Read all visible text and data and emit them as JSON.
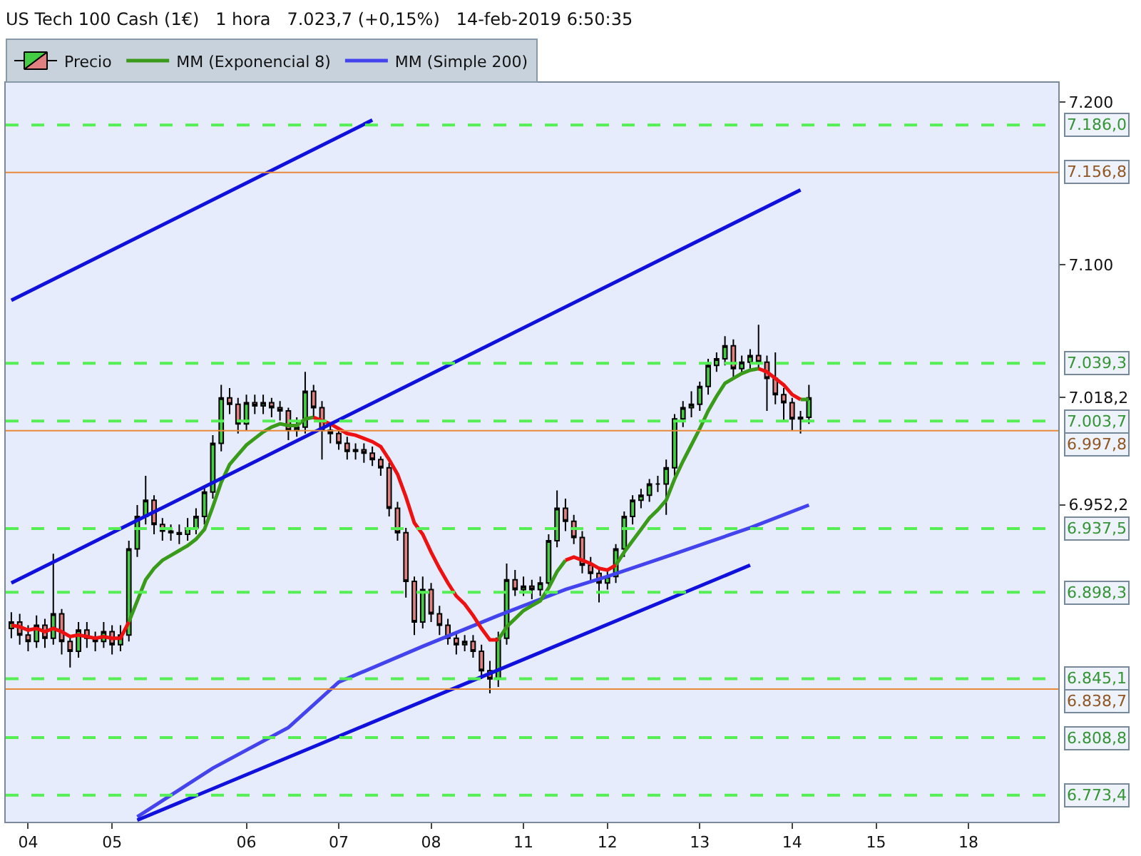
{
  "chart_data": {
    "type": "candlestick",
    "title": "US Tech 100 Cash (1€)   1 hora   7.023,7 (+0,15%)   14-feb-2019 6:50:35",
    "legend": "top left",
    "categories": [
      null,
      null,
      "04",
      null,
      null,
      null,
      null,
      null,
      null,
      null,
      null,
      null,
      "05",
      null,
      null,
      null,
      null,
      null,
      null,
      null,
      null,
      null,
      null,
      null,
      null,
      null,
      null,
      null,
      "06",
      null,
      null,
      null,
      null,
      null,
      null,
      null,
      null,
      null,
      null,
      "07",
      null,
      null,
      null,
      null,
      null,
      null,
      null,
      null,
      null,
      null,
      "08",
      null,
      null,
      null,
      null,
      null,
      null,
      null,
      null,
      null,
      null,
      "11",
      null,
      null,
      null,
      null,
      null,
      null,
      null,
      null,
      null,
      "12",
      null,
      null,
      null,
      null,
      null,
      null,
      null,
      null,
      null,
      null,
      "13",
      null,
      null,
      null,
      null,
      null,
      null,
      null,
      null,
      null,
      null,
      "14",
      null,
      null,
      null,
      null,
      null,
      null,
      null,
      null,
      null,
      "15",
      null,
      null,
      null,
      null,
      null,
      null,
      null,
      null,
      null,
      null,
      "18",
      null,
      null,
      null,
      null,
      null,
      null,
      null,
      null,
      null,
      null
    ],
    "ylim": [
      6757,
      7212
    ],
    "yticks": [
      {
        "value": 7200,
        "label": "7.200"
      },
      {
        "value": 7100,
        "label": "7.100"
      },
      {
        "value": 7018.2,
        "label": "7.018,2"
      },
      {
        "value": 6952.2,
        "label": "6.952,2"
      }
    ],
    "series": [
      {
        "name": "Precio",
        "color": "#000000",
        "ohlc": [
          [
            6876,
            6886,
            6870,
            6880
          ],
          [
            6880,
            6885,
            6866,
            6872
          ],
          [
            6872,
            6878,
            6862,
            6868
          ],
          [
            6868,
            6884,
            6864,
            6878
          ],
          [
            6878,
            6882,
            6864,
            6870
          ],
          [
            6870,
            6922,
            6866,
            6885
          ],
          [
            6885,
            6888,
            6860,
            6868
          ],
          [
            6868,
            6872,
            6852,
            6862
          ],
          [
            6862,
            6880,
            6858,
            6875
          ],
          [
            6875,
            6880,
            6864,
            6870
          ],
          [
            6870,
            6874,
            6862,
            6868
          ],
          [
            6868,
            6880,
            6864,
            6874
          ],
          [
            6874,
            6878,
            6860,
            6866
          ],
          [
            6866,
            6878,
            6862,
            6872
          ],
          [
            6872,
            6930,
            6868,
            6925
          ],
          [
            6925,
            6952,
            6920,
            6945
          ],
          [
            6945,
            6970,
            6940,
            6955
          ],
          [
            6955,
            6958,
            6934,
            6940
          ],
          [
            6940,
            6944,
            6930,
            6936
          ],
          [
            6936,
            6940,
            6930,
            6935
          ],
          [
            6935,
            6940,
            6928,
            6934
          ],
          [
            6934,
            6944,
            6930,
            6938
          ],
          [
            6938,
            6950,
            6934,
            6945
          ],
          [
            6945,
            6964,
            6940,
            6960
          ],
          [
            6960,
            6995,
            6956,
            6990
          ],
          [
            6990,
            7026,
            6985,
            7018
          ],
          [
            7018,
            7024,
            7008,
            7014
          ],
          [
            7014,
            7018,
            6996,
            7002
          ],
          [
            7002,
            7020,
            6998,
            7015
          ],
          [
            7015,
            7020,
            7008,
            7013
          ],
          [
            7013,
            7020,
            7008,
            7015
          ],
          [
            7015,
            7018,
            7006,
            7012
          ],
          [
            7012,
            7016,
            7004,
            7010
          ],
          [
            7010,
            7012,
            6992,
            6998
          ],
          [
            6998,
            7006,
            6994,
            7000
          ],
          [
            7000,
            7034,
            6996,
            7022
          ],
          [
            7022,
            7026,
            7006,
            7012
          ],
          [
            7012,
            7016,
            6980,
            6998
          ],
          [
            6998,
            7002,
            6990,
            6996
          ],
          [
            6996,
            7000,
            6986,
            6990
          ],
          [
            6990,
            6994,
            6980,
            6985
          ],
          [
            6985,
            6990,
            6980,
            6986
          ],
          [
            6986,
            6990,
            6978,
            6984
          ],
          [
            6984,
            6988,
            6976,
            6980
          ],
          [
            6980,
            6982,
            6970,
            6975
          ],
          [
            6975,
            6978,
            6945,
            6950
          ],
          [
            6950,
            6954,
            6930,
            6935
          ],
          [
            6935,
            6938,
            6895,
            6905
          ],
          [
            6905,
            6908,
            6872,
            6880
          ],
          [
            6880,
            6908,
            6876,
            6900
          ],
          [
            6900,
            6904,
            6880,
            6885
          ],
          [
            6885,
            6890,
            6872,
            6878
          ],
          [
            6878,
            6882,
            6866,
            6870
          ],
          [
            6870,
            6874,
            6860,
            6866
          ],
          [
            6866,
            6872,
            6862,
            6868
          ],
          [
            6868,
            6872,
            6858,
            6862
          ],
          [
            6862,
            6866,
            6845,
            6850
          ],
          [
            6850,
            6856,
            6836,
            6845
          ],
          [
            6845,
            6874,
            6840,
            6870
          ],
          [
            6870,
            6916,
            6866,
            6906
          ],
          [
            6906,
            6912,
            6896,
            6900
          ],
          [
            6900,
            6908,
            6896,
            6902
          ],
          [
            6902,
            6906,
            6894,
            6900
          ],
          [
            6900,
            6908,
            6896,
            6904
          ],
          [
            6904,
            6934,
            6900,
            6930
          ],
          [
            6930,
            6961,
            6926,
            6950
          ],
          [
            6950,
            6956,
            6936,
            6942
          ],
          [
            6942,
            6946,
            6928,
            6932
          ],
          [
            6932,
            6936,
            6910,
            6915
          ],
          [
            6915,
            6920,
            6904,
            6910
          ],
          [
            6910,
            6914,
            6892,
            6904
          ],
          [
            6904,
            6912,
            6900,
            6908
          ],
          [
            6908,
            6928,
            6904,
            6925
          ],
          [
            6925,
            6948,
            6920,
            6945
          ],
          [
            6945,
            6958,
            6940,
            6955
          ],
          [
            6955,
            6962,
            6950,
            6958
          ],
          [
            6958,
            6968,
            6954,
            6965
          ],
          [
            6965,
            6970,
            6960,
            6965
          ],
          [
            6965,
            6980,
            6946,
            6975
          ],
          [
            6975,
            7008,
            6970,
            7005
          ],
          [
            7005,
            7016,
            7000,
            7012
          ],
          [
            7012,
            7022,
            7006,
            7014
          ],
          [
            7014,
            7028,
            7010,
            7025
          ],
          [
            7025,
            7042,
            7020,
            7038
          ],
          [
            7038,
            7046,
            7034,
            7042
          ],
          [
            7042,
            7056,
            7038,
            7050
          ],
          [
            7050,
            7054,
            7030,
            7036
          ],
          [
            7036,
            7044,
            7032,
            7040
          ],
          [
            7040,
            7048,
            7036,
            7044
          ],
          [
            7044,
            7063,
            7036,
            7040
          ],
          [
            7040,
            7044,
            7010,
            7030
          ],
          [
            7030,
            7046,
            7014,
            7020
          ],
          [
            7020,
            7024,
            7004,
            7015
          ],
          [
            7015,
            7018,
            6998,
            7005
          ],
          [
            7005,
            7010,
            6996,
            7006
          ],
          [
            7006,
            7026,
            7002,
            7018
          ],
          null,
          null,
          null,
          null,
          null,
          null,
          null,
          null,
          null,
          null,
          null,
          null,
          null,
          null,
          null,
          null,
          null,
          null,
          null,
          null,
          null,
          null,
          null,
          null,
          null,
          null,
          null,
          null,
          null
        ]
      },
      {
        "type": "line",
        "name": "MM (Simple 200)",
        "color": "#4444ee",
        "values": [
          null,
          null,
          null,
          null,
          null,
          null,
          null,
          null,
          null,
          null,
          null,
          null,
          null,
          null,
          null,
          6760,
          null,
          null,
          null,
          null,
          null,
          null,
          null,
          null,
          6790,
          null,
          null,
          null,
          null,
          null,
          null,
          null,
          null,
          6815,
          null,
          null,
          null,
          null,
          null,
          6843,
          null,
          null,
          null,
          null,
          null,
          null,
          null,
          null,
          null,
          6865,
          null,
          null,
          null,
          null,
          null,
          null,
          null,
          null,
          6884,
          null,
          null,
          null,
          null,
          null,
          null,
          null,
          6900,
          null,
          null,
          null,
          null,
          6908,
          null,
          null,
          null,
          null,
          null,
          null,
          null,
          6922,
          null,
          null,
          null,
          null,
          null,
          null,
          null,
          null,
          6938,
          null,
          null,
          null,
          null,
          null,
          null,
          6952,
          null,
          null,
          null,
          null,
          null,
          null,
          null,
          null,
          null,
          null,
          null,
          null,
          null,
          null,
          null,
          null,
          null,
          null,
          null,
          null,
          null,
          null,
          null,
          null,
          null,
          null,
          null,
          null,
          null
        ]
      },
      {
        "type": "line",
        "name": "MM (Exponencial 8)",
        "color": "#3a9a1a",
        "values": [
          null,
          null,
          null,
          null,
          null,
          null,
          null,
          null,
          null,
          null,
          null,
          null,
          null,
          null,
          6880,
          6893,
          6906,
          6913,
          6918,
          6921,
          6924,
          6927,
          6931,
          6937,
          6951,
          6966,
          6977,
          6983,
          6989,
          6993,
          6997,
          7000,
          7002,
          7001,
          7001,
          7005,
          7006,
          null,
          null,
          null,
          null,
          null,
          null,
          null,
          null,
          null,
          null,
          null,
          null,
          null,
          null,
          null,
          null,
          null,
          null,
          null,
          null,
          null,
          6869,
          6877,
          6882,
          6887,
          6890,
          6893,
          6901,
          6911,
          6918,
          null,
          null,
          null,
          null,
          null,
          6915,
          6923,
          6930,
          6937,
          6944,
          6949,
          6955,
          6968,
          6979,
          6989,
          6999,
          7010,
          7019,
          7027,
          7030,
          7033,
          7035,
          7036,
          null,
          null,
          null,
          null,
          7017,
          7017,
          null,
          null,
          null,
          null,
          null,
          null,
          null,
          null,
          null,
          null,
          null,
          null,
          null,
          null,
          null,
          null,
          null,
          null,
          null,
          null,
          null,
          null,
          null,
          null,
          null,
          null,
          null,
          null,
          null
        ]
      },
      {
        "type": "line",
        "color": "#ee1111",
        "values": [
          6878,
          6877,
          6875,
          6876,
          6874,
          6876,
          6874,
          6871,
          6872,
          6871,
          6870,
          6871,
          6870,
          6870,
          6880,
          null,
          null,
          null,
          null,
          null,
          null,
          null,
          null,
          null,
          null,
          null,
          null,
          null,
          null,
          null,
          null,
          null,
          null,
          null,
          null,
          null,
          7006,
          7004,
          7002,
          6999,
          6996,
          6995,
          6993,
          6991,
          6988,
          6980,
          6971,
          6957,
          6941,
          6934,
          6923,
          6913,
          6904,
          6896,
          6891,
          6884,
          6876,
          6869,
          6869,
          null,
          null,
          null,
          null,
          null,
          null,
          null,
          6918,
          6920,
          6918,
          6916,
          6913,
          6912,
          6915,
          null,
          null,
          null,
          null,
          null,
          null,
          null,
          null,
          null,
          null,
          null,
          null,
          null,
          null,
          null,
          null,
          7036,
          7034,
          7030,
          7026,
          7020,
          7017,
          null,
          null,
          null,
          null,
          null,
          null,
          null,
          null,
          null,
          null,
          null,
          null,
          null,
          null,
          null,
          null,
          null,
          null,
          null,
          null,
          null,
          null,
          null,
          null,
          null,
          null,
          null,
          null,
          null,
          null
        ]
      },
      {
        "type": "line",
        "color": "#1111dd",
        "values": [
          7078,
          null,
          null,
          null,
          null,
          null,
          null,
          null,
          null,
          null,
          null,
          null,
          null,
          null,
          null,
          null,
          null,
          null,
          null,
          null,
          null,
          null,
          null,
          null,
          null,
          null,
          null,
          null,
          null,
          null,
          null,
          null,
          null,
          null,
          null,
          null,
          null,
          null,
          null,
          null,
          null,
          null,
          null,
          7189,
          null,
          null,
          null,
          null,
          null,
          null,
          null,
          null,
          null,
          null,
          null,
          null,
          null,
          null,
          null,
          null,
          null,
          null,
          null,
          null,
          null,
          null,
          null,
          null,
          null,
          null,
          null,
          null,
          null,
          null,
          null,
          null,
          null,
          null,
          null,
          null,
          null,
          null,
          null,
          null,
          null,
          null,
          null,
          null,
          null,
          null,
          null,
          null,
          null,
          null,
          null,
          null,
          null,
          null,
          null,
          null,
          null,
          null,
          null,
          null,
          null,
          null,
          null,
          null,
          null,
          null,
          null,
          null,
          null,
          null,
          null,
          null,
          null,
          null,
          null,
          null,
          null,
          null,
          null,
          null,
          null
        ]
      },
      {
        "type": "line",
        "color": "#1111dd",
        "values": [
          6904,
          null,
          null,
          null,
          null,
          null,
          null,
          null,
          null,
          null,
          null,
          null,
          null,
          null,
          null,
          null,
          null,
          null,
          null,
          null,
          null,
          null,
          null,
          null,
          null,
          null,
          null,
          null,
          null,
          null,
          null,
          null,
          null,
          null,
          null,
          null,
          null,
          null,
          null,
          null,
          null,
          null,
          null,
          null,
          null,
          null,
          null,
          null,
          null,
          null,
          null,
          null,
          null,
          null,
          null,
          null,
          null,
          null,
          null,
          null,
          null,
          null,
          null,
          null,
          null,
          null,
          null,
          null,
          null,
          null,
          null,
          null,
          null,
          null,
          null,
          null,
          null,
          null,
          null,
          null,
          null,
          null,
          null,
          null,
          null,
          null,
          null,
          null,
          null,
          null,
          null,
          null,
          null,
          null,
          7146,
          null,
          null,
          null,
          null,
          null,
          null,
          null,
          null,
          null,
          null,
          null,
          null,
          null,
          null,
          null,
          null,
          null,
          null,
          null,
          null,
          null,
          null,
          null,
          null,
          null,
          null,
          null,
          null,
          null,
          null
        ]
      },
      {
        "type": "line",
        "color": "#1111dd",
        "values": [
          null,
          null,
          null,
          null,
          null,
          null,
          null,
          null,
          null,
          null,
          null,
          null,
          null,
          null,
          null,
          6758,
          null,
          null,
          null,
          null,
          null,
          null,
          null,
          null,
          null,
          null,
          null,
          null,
          null,
          null,
          null,
          null,
          null,
          null,
          null,
          null,
          null,
          null,
          null,
          null,
          null,
          null,
          null,
          null,
          null,
          null,
          null,
          null,
          null,
          null,
          null,
          null,
          null,
          null,
          null,
          null,
          null,
          null,
          null,
          null,
          null,
          null,
          null,
          null,
          null,
          null,
          null,
          null,
          null,
          null,
          null,
          null,
          null,
          null,
          null,
          null,
          null,
          null,
          null,
          null,
          null,
          null,
          null,
          null,
          null,
          null,
          null,
          null,
          6915,
          null,
          null,
          null,
          null,
          null,
          null,
          null,
          null,
          null,
          null,
          null,
          null,
          null,
          null,
          null,
          null,
          null,
          null,
          null,
          null,
          null,
          null,
          null,
          null,
          null,
          null,
          null,
          null,
          null,
          null,
          null,
          null,
          null,
          null,
          null,
          null
        ]
      }
    ],
    "ref_lines": [
      {
        "axis": "y",
        "value": 7186,
        "label": "7.186,0",
        "color": "#55ee55",
        "line_style": "dashed"
      },
      {
        "axis": "y",
        "value": 7156.8,
        "label": "7.156,8",
        "color": "#e88a3a",
        "line_style": "solid"
      },
      {
        "axis": "y",
        "value": 7039.3,
        "label": "7.039,3",
        "color": "#55ee55",
        "line_style": "dashed"
      },
      {
        "axis": "y",
        "value": 7003.7,
        "label": "7.003,7",
        "color": "#55ee55",
        "line_style": "dashed"
      },
      {
        "axis": "y",
        "value": 6997.8,
        "label": "6.997,8",
        "color": "#e88a3a",
        "line_style": "solid"
      },
      {
        "axis": "y",
        "value": 6937.5,
        "label": "6.937,5",
        "color": "#55ee55",
        "line_style": "dashed"
      },
      {
        "axis": "y",
        "value": 6898.3,
        "label": "6.898,3",
        "color": "#55ee55",
        "line_style": "dashed"
      },
      {
        "axis": "y",
        "value": 6845.1,
        "label": "6.845,1",
        "color": "#55ee55",
        "line_style": "dashed"
      },
      {
        "axis": "y",
        "value": 6838.7,
        "label": "6.838,7",
        "color": "#e88a3a",
        "line_style": "solid"
      },
      {
        "axis": "y",
        "value": 6808.8,
        "label": "6.808,8",
        "color": "#55ee55",
        "line_style": "dashed"
      },
      {
        "axis": "y",
        "value": 6773.4,
        "label": "6.773,4",
        "color": "#55ee55",
        "line_style": "dashed"
      }
    ]
  }
}
